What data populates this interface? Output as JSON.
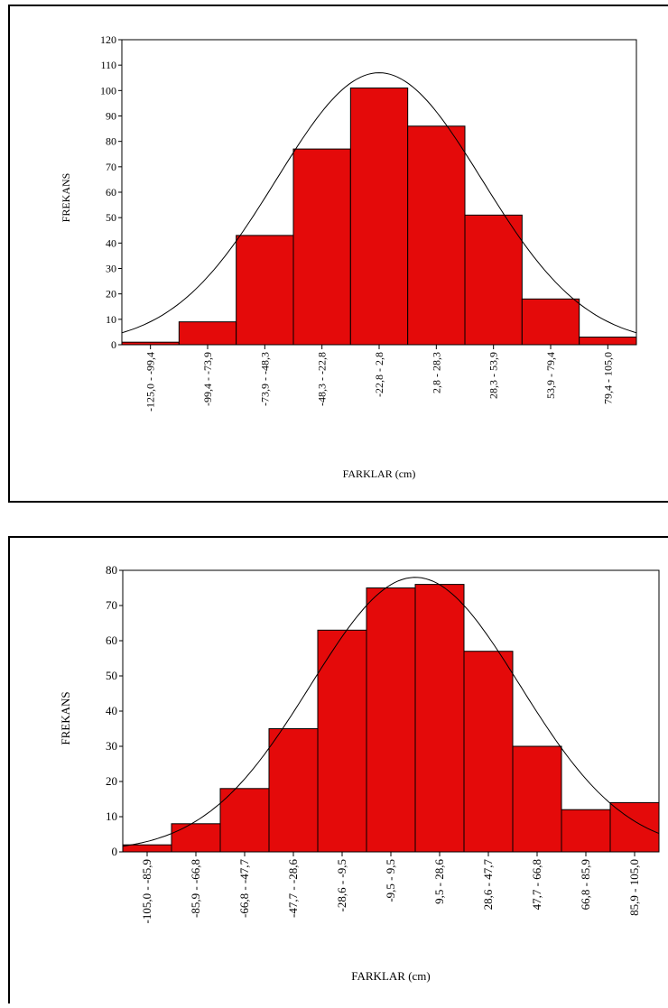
{
  "chart_data": [
    {
      "type": "bar",
      "title": "",
      "xlabel": "FARKLAR (cm)",
      "ylabel": "FREKANS",
      "ylim": [
        0,
        120
      ],
      "yticks": [
        0,
        10,
        20,
        30,
        40,
        50,
        60,
        70,
        80,
        90,
        100,
        110,
        120
      ],
      "categories": [
        "-125,0 - -99,4",
        "-99,4 - -73,9",
        "-73,9 - -48,3",
        "-48,3 - -22,8",
        "-22,8 - 2,8",
        "2,8 - 28,3",
        "28,3 - 53,9",
        "53,9 - 79,4",
        "79,4 - 105,0"
      ],
      "values": [
        1,
        9,
        43,
        77,
        101,
        86,
        51,
        18,
        3
      ],
      "bar_color": "#e40a0a",
      "overlay": "normal curve",
      "curve_peak": 107,
      "curve_peak_bin": 4.5,
      "curve_sd_bins": 1.8,
      "grid": false
    },
    {
      "type": "bar",
      "title": "",
      "xlabel": "FARKLAR (cm)",
      "ylabel": "FREKANS",
      "ylim": [
        0,
        80
      ],
      "yticks": [
        0,
        10,
        20,
        30,
        40,
        50,
        60,
        70,
        80
      ],
      "categories": [
        "-105,0 - -85,9",
        "-85,9 - -66,8",
        "-66,8 - -47,7",
        "-47,7 - -28,6",
        "-28,6 - -9,5",
        "-9,5 - 9,5",
        "9,5 - 28,6",
        "28,6 - 47,7",
        "47,7 - 66,8",
        "66,8 - 85,9",
        "85,9 - 105,0"
      ],
      "values": [
        2,
        8,
        18,
        35,
        63,
        75,
        76,
        57,
        30,
        12,
        14
      ],
      "bar_color": "#e40a0a",
      "overlay": "normal curve",
      "curve_peak": 78,
      "curve_peak_bin": 6.0,
      "curve_sd_bins": 2.15,
      "grid": false
    }
  ]
}
